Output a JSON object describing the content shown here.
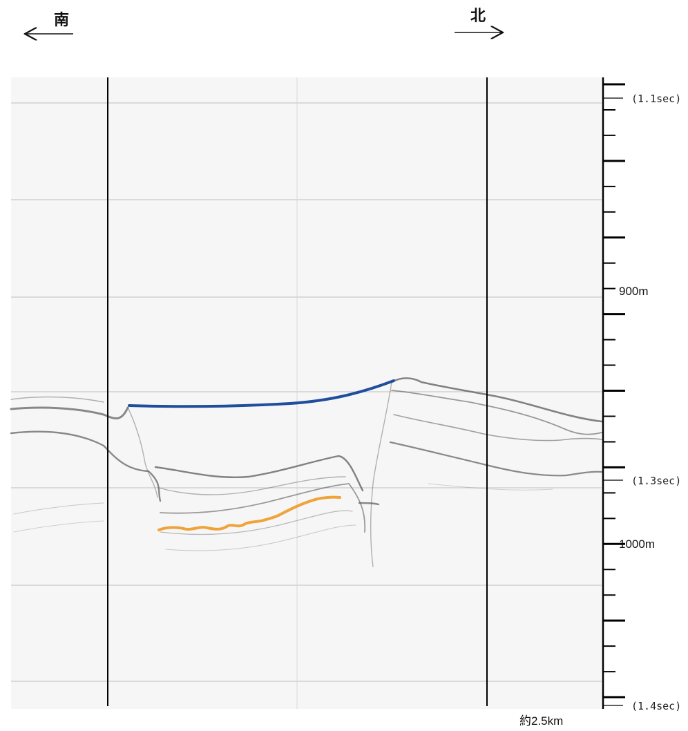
{
  "direction": {
    "south": "南",
    "north": "北"
  },
  "time_labels": [
    "(1.1sec)",
    "(1.3sec)",
    "(1.4sec)"
  ],
  "depth_labels": [
    "900m",
    "1000m"
  ],
  "horizontal_scale": "約2.5km",
  "colors": {
    "profile_background": "#f6f6f6",
    "reflector": "#5a5a5a",
    "upper_interpretation_line": "#1f4e9c",
    "lower_interpretation_line": "#f0a33a"
  }
}
